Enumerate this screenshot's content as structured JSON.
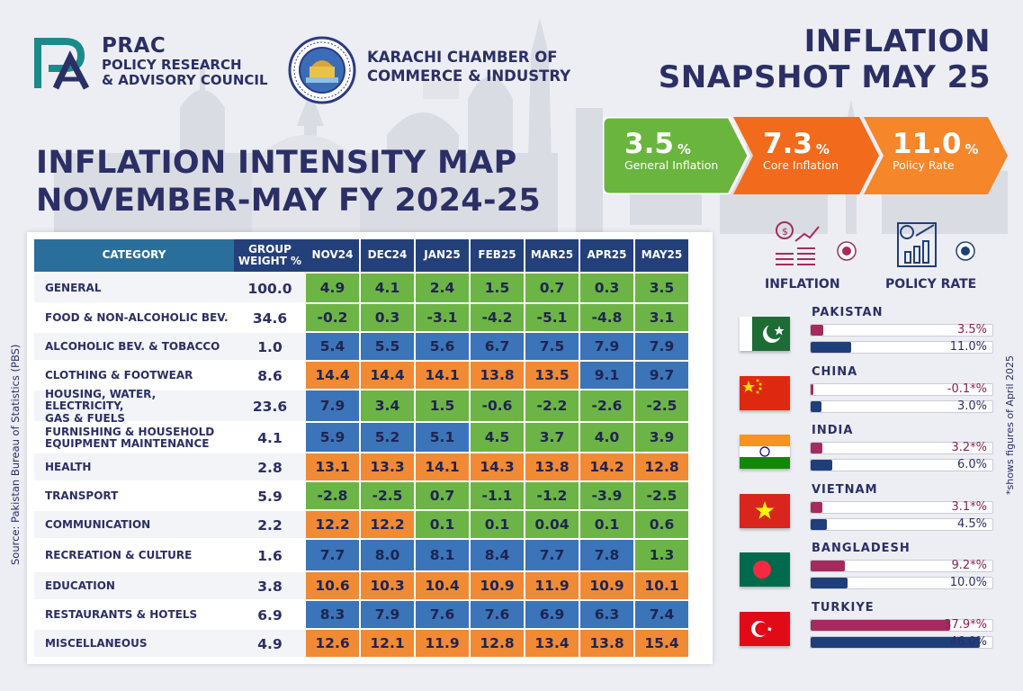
{
  "header": {
    "prac_short": "PRAC",
    "prac_line1": "POLICY RESEARCH",
    "prac_line2": "& ADVISORY COUNCIL",
    "kcci_line1": "KARACHI CHAMBER OF",
    "kcci_line2": "COMMERCE & INDUSTRY",
    "kcci_seal_text": "KARACHI CHAMBER OF COMMERCE & INDUSTRY",
    "kcci_seal_year": "EST. 1959",
    "snapshot_line1": "INFLATION",
    "snapshot_line2": "SNAPSHOT MAY 25"
  },
  "map_title": {
    "line1": "INFLATION INTENSITY MAP",
    "line2": "NOVEMBER-MAY  FY 2024-25"
  },
  "kpis": [
    {
      "value": "3.5",
      "unit": "%",
      "label": "General Inflation",
      "color": "#6ab53d"
    },
    {
      "value": "7.3",
      "unit": "%",
      "label": "Core Inflation",
      "color": "#f26a1b"
    },
    {
      "value": "11.0",
      "unit": "%",
      "label": "Policy Rate",
      "color": "#f5862a"
    }
  ],
  "colors": {
    "green": "#6cb445",
    "blue": "#3b74b8",
    "orange": "#f08a35",
    "inflation_bar": "#a52b5e",
    "policy_bar": "#1f3f7a",
    "header_navy": "#23407a"
  },
  "chart_data": [
    {
      "type": "heatmap",
      "columns": [
        "CATEGORY",
        "GROUP WEIGHT %",
        "NOV24",
        "DEC24",
        "JAN25",
        "FEB25",
        "MAR25",
        "APR25",
        "MAY25"
      ],
      "header_labels": {
        "category": "CATEGORY",
        "weight_1": "GROUP",
        "weight_2": "WEIGHT %",
        "months": [
          "NOV24",
          "DEC24",
          "JAN25",
          "FEB25",
          "MAR25",
          "APR25",
          "MAY25"
        ]
      },
      "rows": [
        {
          "category": [
            "GENERAL"
          ],
          "weight": "100.0",
          "values": [
            "4.9",
            "4.1",
            "2.4",
            "1.5",
            "0.7",
            "0.3",
            "3.5"
          ],
          "colors": [
            "green",
            "green",
            "green",
            "green",
            "green",
            "green",
            "green"
          ]
        },
        {
          "category": [
            "FOOD & NON-ALCOHOLIC BEV."
          ],
          "weight": "34.6",
          "values": [
            "-0.2",
            "0.3",
            "-3.1",
            "-4.2",
            "-5.1",
            "-4.8",
            "3.1"
          ],
          "colors": [
            "green",
            "green",
            "green",
            "green",
            "green",
            "green",
            "green"
          ]
        },
        {
          "category": [
            "ALCOHOLIC BEV. & TOBACCO"
          ],
          "weight": "1.0",
          "values": [
            "5.4",
            "5.5",
            "5.6",
            "6.7",
            "7.5",
            "7.9",
            "7.9"
          ],
          "colors": [
            "blue",
            "blue",
            "blue",
            "blue",
            "blue",
            "blue",
            "blue"
          ]
        },
        {
          "category": [
            "CLOTHING & FOOTWEAR"
          ],
          "weight": "8.6",
          "values": [
            "14.4",
            "14.4",
            "14.1",
            "13.8",
            "13.5",
            "9.1",
            "9.7"
          ],
          "colors": [
            "orange",
            "orange",
            "orange",
            "orange",
            "orange",
            "blue",
            "blue"
          ]
        },
        {
          "category": [
            "HOUSING, WATER, ELECTRICITY,",
            "GAS & FUELS"
          ],
          "weight": "23.6",
          "values": [
            "7.9",
            "3.4",
            "1.5",
            "-0.6",
            "-2.2",
            "-2.6",
            "-2.5"
          ],
          "colors": [
            "blue",
            "green",
            "green",
            "green",
            "green",
            "green",
            "green"
          ]
        },
        {
          "category": [
            "FURNISHING & HOUSEHOLD",
            "EQUIPMENT MAINTENANCE"
          ],
          "weight": "4.1",
          "values": [
            "5.9",
            "5.2",
            "5.1",
            "4.5",
            "3.7",
            "4.0",
            "3.9"
          ],
          "colors": [
            "blue",
            "blue",
            "blue",
            "green",
            "green",
            "green",
            "green"
          ]
        },
        {
          "category": [
            "HEALTH"
          ],
          "weight": "2.8",
          "values": [
            "13.1",
            "13.3",
            "14.1",
            "14.3",
            "13.8",
            "14.2",
            "12.8"
          ],
          "colors": [
            "orange",
            "orange",
            "orange",
            "orange",
            "orange",
            "orange",
            "orange"
          ]
        },
        {
          "category": [
            "TRANSPORT"
          ],
          "weight": "5.9",
          "values": [
            "-2.8",
            "-2.5",
            "0.7",
            "-1.1",
            "-1.2",
            "-3.9",
            "-2.5"
          ],
          "colors": [
            "green",
            "green",
            "green",
            "green",
            "green",
            "green",
            "green"
          ]
        },
        {
          "category": [
            "COMMUNICATION"
          ],
          "weight": "2.2",
          "values": [
            "12.2",
            "12.2",
            "0.1",
            "0.1",
            "0.04",
            "0.1",
            "0.6"
          ],
          "colors": [
            "orange",
            "orange",
            "green",
            "green",
            "green",
            "green",
            "green"
          ]
        },
        {
          "category": [
            "RECREATION & CULTURE"
          ],
          "weight": "1.6",
          "values": [
            "7.7",
            "8.0",
            "8.1",
            "8.4",
            "7.7",
            "7.8",
            "1.3"
          ],
          "colors": [
            "blue",
            "blue",
            "blue",
            "blue",
            "blue",
            "blue",
            "green"
          ]
        },
        {
          "category": [
            "EDUCATION"
          ],
          "weight": "3.8",
          "values": [
            "10.6",
            "10.3",
            "10.4",
            "10.9",
            "11.9",
            "10.9",
            "10.1"
          ],
          "colors": [
            "orange",
            "orange",
            "orange",
            "orange",
            "orange",
            "orange",
            "orange"
          ]
        },
        {
          "category": [
            "RESTAURANTS & HOTELS"
          ],
          "weight": "6.9",
          "values": [
            "8.3",
            "7.9",
            "7.6",
            "7.6",
            "6.9",
            "6.3",
            "7.4"
          ],
          "colors": [
            "blue",
            "blue",
            "blue",
            "blue",
            "blue",
            "blue",
            "blue"
          ]
        },
        {
          "category": [
            "MISCELLANEOUS"
          ],
          "weight": "4.9",
          "values": [
            "12.6",
            "12.1",
            "11.9",
            "12.8",
            "13.4",
            "13.8",
            "15.4"
          ],
          "colors": [
            "orange",
            "orange",
            "orange",
            "orange",
            "orange",
            "orange",
            "orange"
          ]
        }
      ]
    },
    {
      "type": "bar",
      "legend": [
        {
          "label": "INFLATION",
          "icon": "coins-growth-icon",
          "color": "#a52b5e"
        },
        {
          "label": "POLICY RATE",
          "icon": "report-chart-icon",
          "color": "#1f3f7a"
        }
      ],
      "max_scale": 50,
      "countries": [
        {
          "name": "PAKISTAN",
          "flag": "pakistan-flag",
          "inflation": 3.5,
          "inflation_label": "3.5%",
          "policy": 11.0,
          "policy_label": "11.0%"
        },
        {
          "name": "CHINA",
          "flag": "china-flag",
          "inflation": -0.1,
          "inflation_label": "-0.1*%",
          "policy": 3.0,
          "policy_label": "3.0%"
        },
        {
          "name": "INDIA",
          "flag": "india-flag",
          "inflation": 3.2,
          "inflation_label": "3.2*%",
          "policy": 6.0,
          "policy_label": "6.0%"
        },
        {
          "name": "VIETNAM",
          "flag": "vietnam-flag",
          "inflation": 3.1,
          "inflation_label": "3.1*%",
          "policy": 4.5,
          "policy_label": "4.5%"
        },
        {
          "name": "BANGLADESH",
          "flag": "bangladesh-flag",
          "inflation": 9.2,
          "inflation_label": "9.2*%",
          "policy": 10.0,
          "policy_label": "10.0%"
        },
        {
          "name": "TURKIYE",
          "flag": "turkiye-flag",
          "inflation": 37.9,
          "inflation_label": "37.9*%",
          "policy": 46.0,
          "policy_label": "46.0%"
        }
      ]
    }
  ],
  "source": "Source: Pakistan Bureau of Statistics (PBS)",
  "footnote": "*shows  figures of April 2025"
}
